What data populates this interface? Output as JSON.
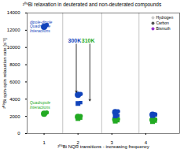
{
  "chart_data": {
    "type": "scatter",
    "title": "²⁰⁹Bi relaxation in deuterated and non-deuterated compounds",
    "xlabel": "²⁰⁹Bi NQR transitions - increasing frequency",
    "ylabel": "²⁰⁹Bi spin-spin relaxation rate [s⁻¹]",
    "xlim": [
      0.5,
      5.0
    ],
    "xticks": [
      1,
      2,
      3,
      4
    ],
    "ylim": [
      0,
      14000
    ],
    "yticks": [
      0,
      2000,
      4000,
      6000,
      8000,
      10000,
      12000,
      14000
    ],
    "grid": false,
    "series": [
      {
        "marker": "circle",
        "color": "#1144bb",
        "x": [
          1.0,
          1.08,
          2.0,
          2.08,
          3.1,
          3.18,
          4.2,
          4.28
        ],
        "values": [
          12400,
          12600,
          4500,
          4600,
          2500,
          2580,
          2200,
          2250
        ],
        "sizes": [
          55,
          25,
          55,
          25,
          55,
          25,
          55,
          25
        ]
      },
      {
        "marker": "circle",
        "color": "#22aa22",
        "x": [
          1.0,
          1.08,
          2.0,
          2.08,
          3.1,
          3.18,
          4.2,
          4.28
        ],
        "values": [
          2300,
          2450,
          1950,
          2050,
          1650,
          1700,
          1600,
          1650
        ],
        "sizes": [
          55,
          25,
          55,
          25,
          55,
          25,
          55,
          25
        ]
      },
      {
        "marker": "square",
        "color": "#1144bb",
        "x": [
          2.0,
          2.08,
          3.1,
          3.18,
          4.2,
          4.28
        ],
        "values": [
          3500,
          3600,
          2050,
          2100,
          2100,
          2150
        ],
        "sizes": [
          40,
          20,
          40,
          20,
          40,
          20
        ]
      },
      {
        "marker": "square",
        "color": "#22aa22",
        "x": [
          2.0,
          2.08,
          3.1,
          3.18,
          4.2,
          4.28
        ],
        "values": [
          1750,
          1800,
          1450,
          1500,
          1400,
          1450
        ],
        "sizes": [
          40,
          20,
          40,
          20,
          40,
          20
        ]
      }
    ],
    "vlines": [
      1.55,
      2.7,
      3.8
    ],
    "temperature_labels": [
      {
        "text": "300K",
        "x": 1.9,
        "y": 10600,
        "color": "#1144bb"
      },
      {
        "text": "310K",
        "x": 2.3,
        "y": 10600,
        "color": "#22aa22"
      }
    ],
    "annotations": [
      {
        "text": "dipole-dipole\nQuadrupole\nInteractions",
        "x": 0.58,
        "y": 13200,
        "color": "#1144bb"
      },
      {
        "text": "Quadrupole\nInteractions",
        "x": 0.58,
        "y": 3800,
        "color": "#22aa22"
      }
    ],
    "arrows": [
      {
        "x": 1.95,
        "y_start": 10400,
        "y_end": 4800
      },
      {
        "x": 2.35,
        "y_start": 10400,
        "y_end": 3800
      }
    ],
    "inset_legend": [
      {
        "label": "Hydrogen",
        "color": "#cccccc"
      },
      {
        "label": "Carbon",
        "color": "#555555"
      },
      {
        "label": "Bismuth",
        "color": "#9933cc"
      }
    ]
  }
}
